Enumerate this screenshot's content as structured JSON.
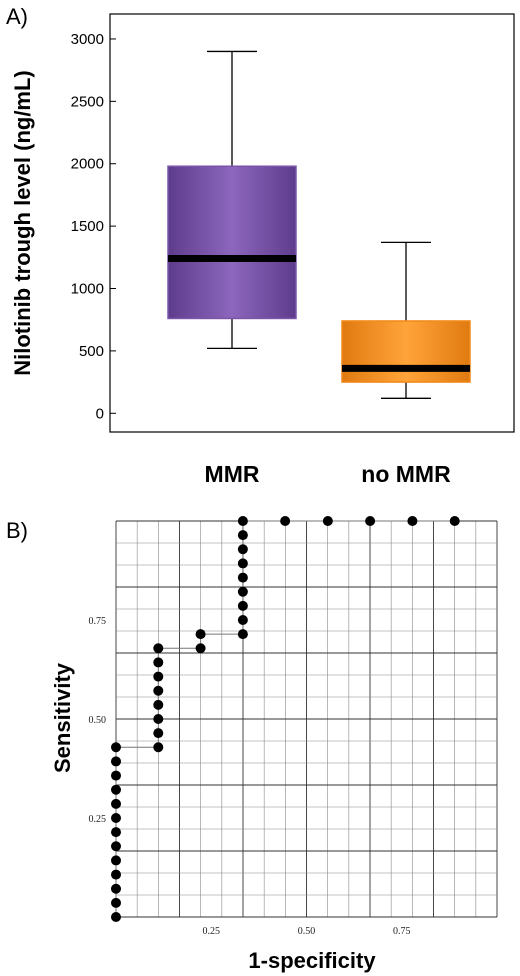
{
  "panels": {
    "a_label": "A)",
    "b_label": "B)"
  },
  "chart_data": [
    {
      "type": "box",
      "ylabel": "Nilotinib trough level (ng/mL)",
      "ylim": [
        -150,
        3200
      ],
      "yticks": [
        0,
        500,
        1000,
        1500,
        2000,
        2500,
        3000
      ],
      "categories": [
        "MMR",
        "no MMR"
      ],
      "boxes": [
        {
          "category": "MMR",
          "whisker_low": 520,
          "q1": 760,
          "median": 1240,
          "q3": 1980,
          "whisker_high": 2900,
          "color": "#7a55a8"
        },
        {
          "category": "no MMR",
          "whisker_low": 120,
          "q1": 250,
          "median": 360,
          "q3": 740,
          "whisker_high": 1370,
          "color": "#f28a1c"
        }
      ],
      "median_color": "#000000"
    },
    {
      "type": "line",
      "xlabel": "1-specificity",
      "ylabel": "Sensitivity",
      "xlim": [
        0,
        1
      ],
      "ylim": [
        0,
        1
      ],
      "xticks": [
        0.25,
        0.5,
        0.75
      ],
      "yticks": [
        0.25,
        0.5,
        0.75
      ],
      "grid": true,
      "series": [
        {
          "points": [
            [
              0,
              0
            ],
            [
              0,
              0.0357
            ],
            [
              0,
              0.0714
            ],
            [
              0,
              0.1071
            ],
            [
              0,
              0.1429
            ],
            [
              0,
              0.1786
            ],
            [
              0,
              0.2143
            ],
            [
              0,
              0.25
            ],
            [
              0,
              0.2857
            ],
            [
              0,
              0.3214
            ],
            [
              0,
              0.3571
            ],
            [
              0,
              0.3929
            ],
            [
              0,
              0.4286
            ],
            [
              0.111,
              0.4286
            ],
            [
              0.111,
              0.4643
            ],
            [
              0.111,
              0.5
            ],
            [
              0.111,
              0.5357
            ],
            [
              0.111,
              0.5714
            ],
            [
              0.111,
              0.6071
            ],
            [
              0.111,
              0.6429
            ],
            [
              0.111,
              0.6786
            ],
            [
              0.222,
              0.6786
            ],
            [
              0.222,
              0.7143
            ],
            [
              0.333,
              0.7143
            ],
            [
              0.333,
              0.75
            ],
            [
              0.333,
              0.7857
            ],
            [
              0.333,
              0.8214
            ],
            [
              0.333,
              0.8571
            ],
            [
              0.333,
              0.8929
            ],
            [
              0.333,
              0.9286
            ],
            [
              0.333,
              0.9643
            ],
            [
              0.333,
              1.0
            ],
            [
              0.444,
              1.0
            ],
            [
              0.556,
              1.0
            ],
            [
              0.667,
              1.0
            ],
            [
              0.778,
              1.0
            ],
            [
              0.889,
              1.0
            ]
          ]
        }
      ]
    }
  ]
}
